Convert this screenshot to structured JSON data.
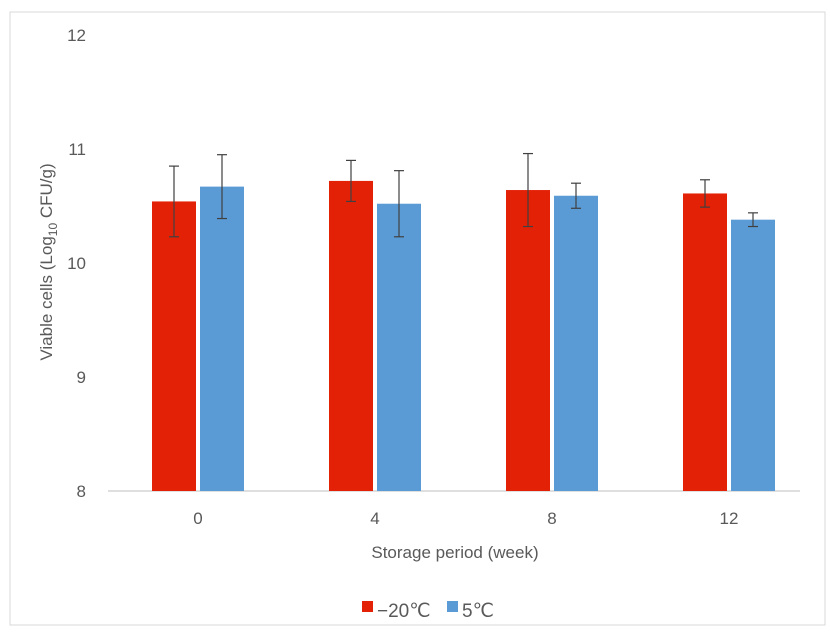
{
  "chart_data": {
    "type": "bar",
    "categories": [
      "0",
      "4",
      "8",
      "12"
    ],
    "series": [
      {
        "name": "−20℃",
        "color": "#e32107",
        "values": [
          10.54,
          10.72,
          10.64,
          10.61
        ],
        "errors": [
          0.31,
          0.18,
          0.32,
          0.12
        ]
      },
      {
        "name": "5℃",
        "color": "#5b9bd5",
        "values": [
          10.67,
          10.52,
          10.59,
          10.38
        ],
        "errors": [
          0.28,
          0.29,
          0.11,
          0.06
        ]
      }
    ],
    "ylim": [
      8,
      12
    ],
    "yticks": [
      "8",
      "9",
      "10",
      "11",
      "12"
    ],
    "xlabel": "Storage period (week)",
    "ylabel": {
      "prefix": "Viable cells (Log",
      "subscript": "10",
      "suffix": " CFU/g)"
    },
    "legend_position": "bottom",
    "grid": false
  }
}
